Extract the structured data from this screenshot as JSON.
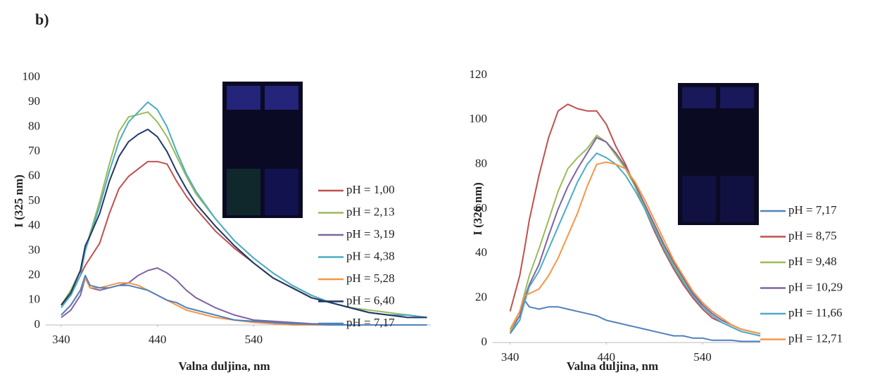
{
  "panel_label": "b)",
  "chart_data": [
    {
      "type": "line",
      "xlabel": "Valna duljina, nm",
      "ylabel": "I (325 nm)",
      "xlim": [
        324,
        724
      ],
      "ylim": [
        0,
        100
      ],
      "xticks": [
        340,
        440,
        540
      ],
      "yticks": [
        0,
        10,
        20,
        30,
        40,
        50,
        60,
        70,
        80,
        90,
        100
      ],
      "legend": "right",
      "x": [
        340,
        350,
        360,
        365,
        370,
        380,
        390,
        400,
        410,
        420,
        430,
        440,
        450,
        460,
        470,
        480,
        500,
        520,
        540,
        560,
        580,
        600,
        620,
        640,
        660,
        680,
        700,
        720
      ],
      "series": [
        {
          "name": "pH = 1,00",
          "color": "#c0504d",
          "values": [
            8,
            12,
            20,
            24,
            27,
            33,
            45,
            55,
            60,
            63,
            66,
            66,
            65,
            58,
            52,
            47,
            38,
            31,
            25,
            19,
            15,
            11,
            9,
            7,
            5,
            4,
            4,
            3
          ]
        },
        {
          "name": "pH = 2,13",
          "color": "#9bbb59",
          "values": [
            8,
            14,
            22,
            30,
            37,
            50,
            65,
            78,
            84,
            85,
            86,
            82,
            76,
            68,
            60,
            53,
            43,
            34,
            27,
            21,
            16,
            12,
            9,
            7,
            6,
            5,
            4,
            3
          ]
        },
        {
          "name": "pH = 3,19",
          "color": "#8064a2",
          "values": [
            3,
            6,
            12,
            19,
            15,
            14,
            15,
            16,
            17,
            20,
            22,
            23,
            21,
            18,
            14,
            11,
            7,
            4,
            2,
            1.5,
            1,
            0.5,
            0.3,
            0,
            0,
            0,
            0,
            0
          ]
        },
        {
          "name": "pH = 4,38",
          "color": "#4bacc6",
          "values": [
            7,
            12,
            20,
            30,
            36,
            48,
            62,
            74,
            82,
            86,
            90,
            87,
            80,
            70,
            61,
            54,
            43,
            34,
            27,
            21,
            16,
            12,
            9,
            7,
            5,
            4,
            4,
            3
          ]
        },
        {
          "name": "pH = 5,28",
          "color": "#f79646",
          "values": [
            4,
            8,
            14,
            19,
            15,
            15,
            16,
            17,
            17,
            16,
            14,
            12,
            10,
            8,
            6,
            5,
            3,
            2,
            1,
            0.5,
            0,
            0,
            0,
            0,
            0,
            0,
            0,
            0
          ]
        },
        {
          "name": "pH = 6,40",
          "color": "#1f3864",
          "values": [
            8,
            13,
            22,
            32,
            36,
            45,
            58,
            68,
            74,
            77,
            79,
            76,
            70,
            62,
            55,
            49,
            40,
            32,
            25,
            19,
            15,
            11,
            9,
            7,
            5,
            4,
            3,
            3
          ]
        },
        {
          "name": "pH = 7,17",
          "color": "#4f81bd",
          "values": [
            4,
            8,
            14,
            20,
            16,
            15,
            15,
            16,
            16,
            15,
            14,
            12,
            10,
            9,
            7,
            6,
            4,
            2,
            1.5,
            1,
            0.5,
            0.3,
            0,
            0,
            0,
            0,
            0,
            0
          ]
        }
      ]
    },
    {
      "type": "line",
      "xlabel": "Valna duljina, nm",
      "ylabel": "I (326 nm)",
      "xlim": [
        322,
        600
      ],
      "ylim": [
        0,
        120
      ],
      "xticks": [
        340,
        440,
        540
      ],
      "yticks": [
        0,
        20,
        40,
        60,
        80,
        100,
        120
      ],
      "legend": "right",
      "x": [
        340,
        350,
        355,
        360,
        370,
        380,
        390,
        400,
        410,
        420,
        430,
        440,
        450,
        460,
        470,
        480,
        490,
        500,
        510,
        520,
        530,
        540,
        550,
        560,
        570,
        580,
        590,
        600
      ],
      "series": [
        {
          "name": "pH = 7,17",
          "color": "#4f81bd",
          "values": [
            4,
            10,
            19,
            16,
            15,
            16,
            16,
            15,
            14,
            13,
            12,
            10,
            9,
            8,
            7,
            6,
            5,
            4,
            3,
            3,
            2,
            2,
            1,
            1,
            1,
            0.5,
            0.5,
            0.5
          ]
        },
        {
          "name": "pH = 8,75",
          "color": "#c0504d",
          "values": [
            14,
            30,
            42,
            55,
            75,
            92,
            104,
            107,
            105,
            104,
            104,
            98,
            88,
            80,
            70,
            60,
            50,
            41,
            33,
            26,
            20,
            15,
            11,
            9,
            7,
            5,
            4,
            3
          ]
        },
        {
          "name": "pH = 9,48",
          "color": "#9bbb59",
          "values": [
            6,
            14,
            22,
            30,
            42,
            55,
            68,
            78,
            83,
            87,
            93,
            90,
            84,
            78,
            70,
            61,
            52,
            43,
            35,
            28,
            22,
            17,
            13,
            10,
            8,
            6,
            5,
            4
          ]
        },
        {
          "name": "pH = 10,29",
          "color": "#8064a2",
          "values": [
            5,
            12,
            20,
            26,
            35,
            48,
            60,
            70,
            78,
            85,
            92,
            90,
            85,
            79,
            71,
            62,
            53,
            44,
            36,
            29,
            22,
            17,
            13,
            10,
            8,
            6,
            5,
            4
          ]
        },
        {
          "name": "pH = 11,66",
          "color": "#4bacc6",
          "values": [
            5,
            10,
            18,
            25,
            32,
            42,
            52,
            62,
            72,
            80,
            85,
            83,
            80,
            75,
            68,
            60,
            51,
            42,
            34,
            27,
            21,
            16,
            12,
            9,
            7,
            5,
            4,
            3
          ]
        },
        {
          "name": "pH = 12,71",
          "color": "#f79646",
          "values": [
            5,
            14,
            21,
            22,
            24,
            30,
            38,
            48,
            58,
            70,
            80,
            81,
            80,
            78,
            72,
            64,
            55,
            46,
            37,
            30,
            23,
            18,
            14,
            11,
            8,
            6,
            5,
            4
          ]
        }
      ]
    }
  ]
}
